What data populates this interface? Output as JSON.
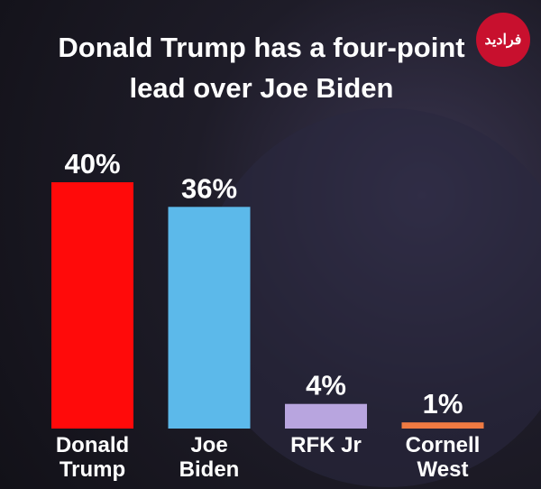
{
  "chart_data": {
    "type": "bar",
    "title": "Donald Trump has a four-point lead over Joe Biden",
    "watermark": "فرادید",
    "categories": [
      "Donald Trump",
      "Joe Biden",
      "RFK Jr",
      "Cornell West"
    ],
    "values": [
      40,
      36,
      4,
      1
    ],
    "value_labels": [
      "40%",
      "36%",
      "4%",
      "1%"
    ],
    "colors": [
      "#ff0a0a",
      "#5cb9ea",
      "#b8a5df",
      "#ef7a42"
    ],
    "ylim": [
      0,
      40
    ]
  }
}
